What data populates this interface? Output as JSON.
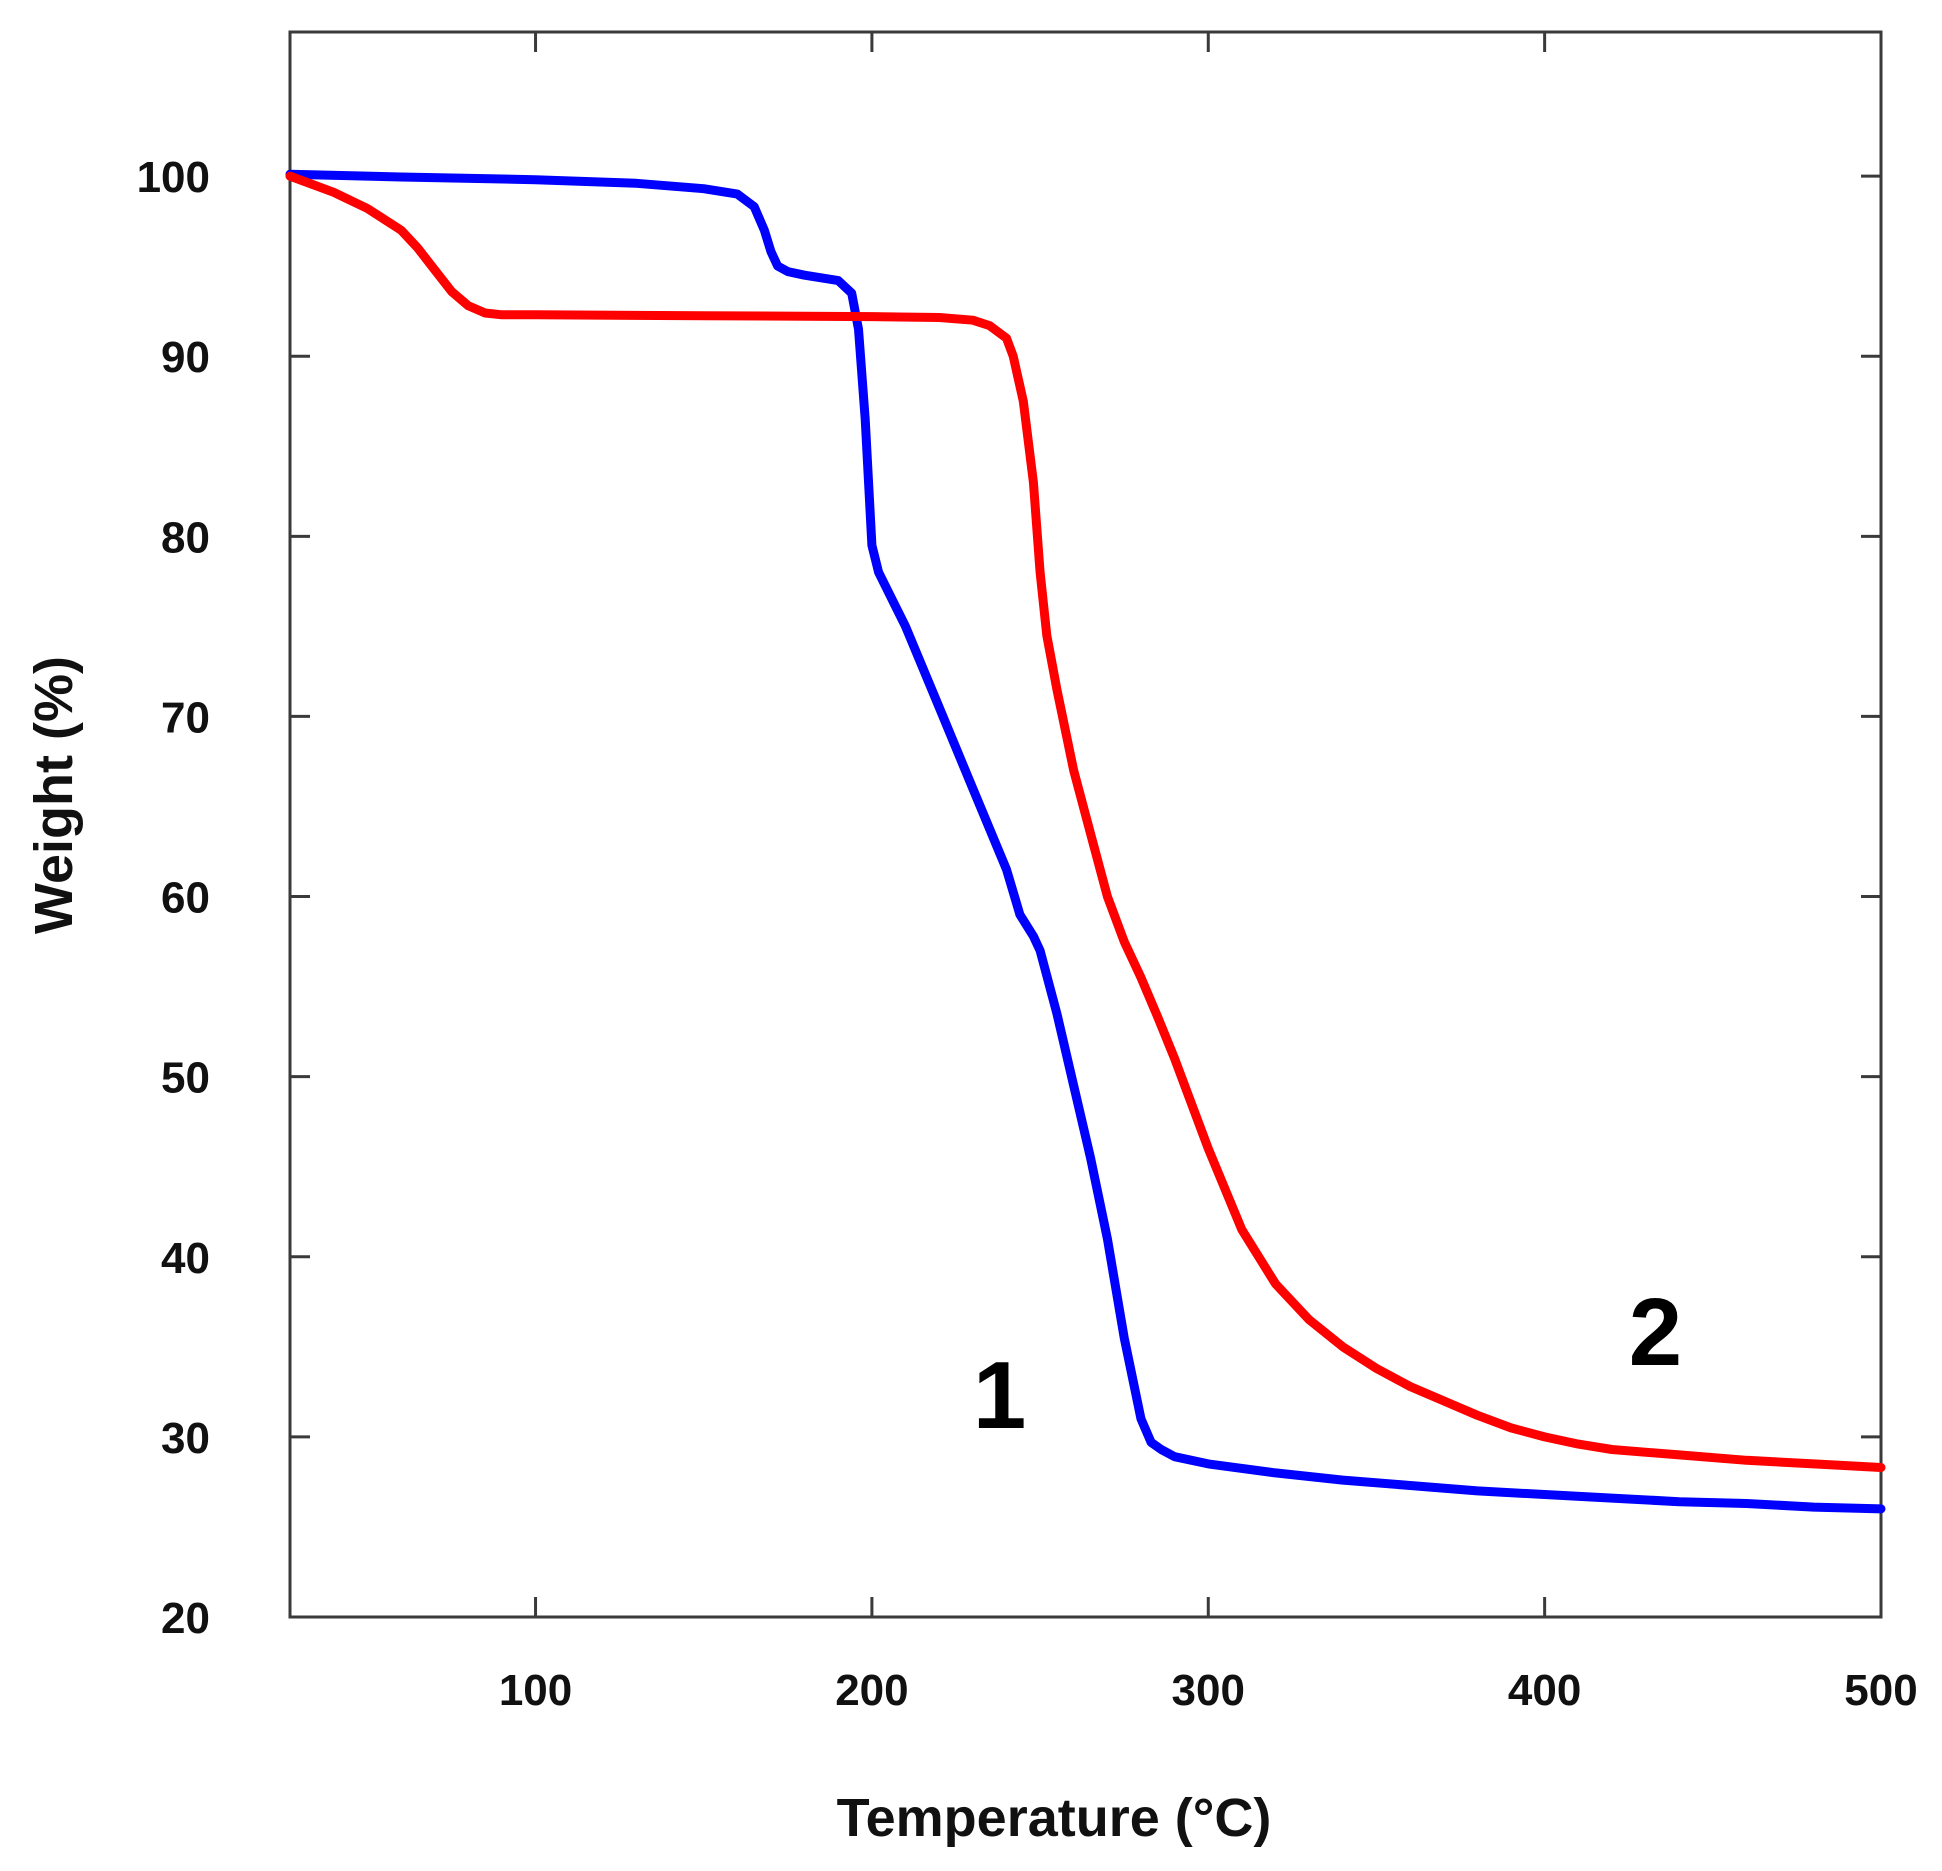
{
  "chart_data": {
    "type": "line",
    "title": "",
    "xlabel": "Temperature (°C)",
    "ylabel": "Weight (%)",
    "xlim": [
      27,
      500
    ],
    "ylim": [
      20,
      108
    ],
    "xticks": [
      100,
      200,
      300,
      400,
      500
    ],
    "yticks": [
      20,
      30,
      40,
      50,
      60,
      70,
      80,
      90,
      100
    ],
    "grid": false,
    "series": [
      {
        "name": "1",
        "color": "#0000ff",
        "label_at": [
          230,
          30.5
        ],
        "x": [
          27,
          60,
          100,
          130,
          150,
          160,
          165,
          168,
          170,
          172,
          175,
          180,
          190,
          194,
          196,
          198,
          200,
          202,
          210,
          220,
          230,
          240,
          244,
          248,
          250,
          255,
          260,
          265,
          270,
          275,
          280,
          283,
          286,
          290,
          300,
          320,
          340,
          360,
          380,
          400,
          420,
          440,
          460,
          480,
          500
        ],
        "y": [
          100.1,
          99.95,
          99.8,
          99.6,
          99.3,
          99.0,
          98.3,
          97.0,
          95.8,
          95.0,
          94.7,
          94.5,
          94.2,
          93.5,
          91.5,
          86.5,
          79.5,
          78.0,
          75.0,
          70.5,
          66.0,
          61.5,
          59.0,
          57.8,
          57.0,
          53.5,
          49.5,
          45.5,
          41.0,
          35.5,
          31.0,
          29.7,
          29.3,
          28.9,
          28.5,
          28.0,
          27.6,
          27.3,
          27.0,
          26.8,
          26.6,
          26.4,
          26.3,
          26.1,
          26.0
        ]
      },
      {
        "name": "2",
        "color": "#ff0000",
        "label_at": [
          425,
          34
        ],
        "x": [
          27,
          40,
          50,
          60,
          65,
          70,
          75,
          80,
          85,
          90,
          100,
          150,
          200,
          220,
          230,
          235,
          240,
          242,
          245,
          248,
          250,
          252,
          255,
          260,
          265,
          270,
          275,
          280,
          285,
          290,
          300,
          310,
          320,
          330,
          340,
          350,
          360,
          370,
          380,
          390,
          400,
          410,
          420,
          440,
          460,
          480,
          500
        ],
        "y": [
          100.0,
          99.1,
          98.2,
          97.0,
          96.0,
          94.8,
          93.6,
          92.8,
          92.4,
          92.3,
          92.3,
          92.25,
          92.2,
          92.15,
          92.0,
          91.7,
          91.0,
          90.0,
          87.5,
          83.0,
          78.0,
          74.5,
          71.5,
          67.0,
          63.5,
          60.0,
          57.5,
          55.5,
          53.3,
          51.0,
          46.0,
          41.5,
          38.5,
          36.5,
          35.0,
          33.8,
          32.8,
          32.0,
          31.2,
          30.5,
          30.0,
          29.6,
          29.3,
          29.0,
          28.7,
          28.5,
          28.3
        ]
      }
    ]
  }
}
